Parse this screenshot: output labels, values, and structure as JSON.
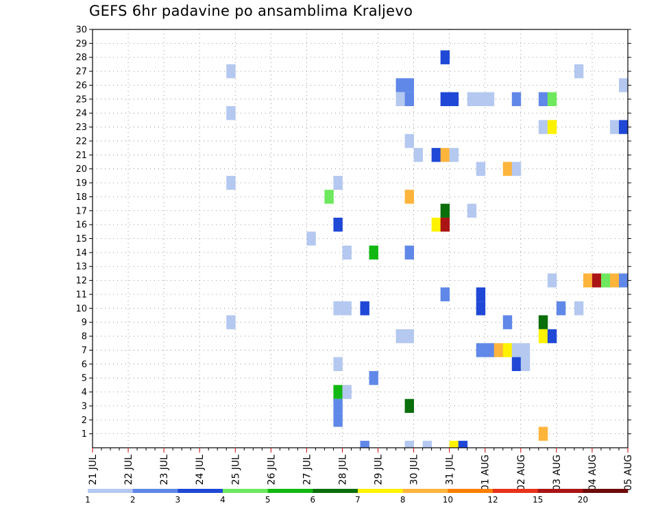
{
  "chart_data": {
    "type": "heatmap",
    "title": "GEFS 6hr padavine po ansamblima Kraljevo",
    "xlabel": "",
    "ylabel": "",
    "x_range": [
      0,
      59
    ],
    "x_unit": "6-hour steps from 21 JUL 00z",
    "ylim": [
      0,
      30
    ],
    "y_ticks": [
      1,
      2,
      3,
      4,
      5,
      6,
      7,
      8,
      9,
      10,
      11,
      12,
      13,
      14,
      15,
      16,
      17,
      18,
      19,
      20,
      21,
      22,
      23,
      24,
      25,
      26,
      27,
      28,
      29,
      30
    ],
    "x_tick_labels": [
      {
        "step": 0,
        "label": "21 JUL"
      },
      {
        "step": 4,
        "label": "22 JUL"
      },
      {
        "step": 8,
        "label": "23 JUL"
      },
      {
        "step": 12,
        "label": "24 JUL"
      },
      {
        "step": 16,
        "label": "25 JUL"
      },
      {
        "step": 20,
        "label": "26 JUL"
      },
      {
        "step": 24,
        "label": "27 JUL"
      },
      {
        "step": 28,
        "label": "28 JUL"
      },
      {
        "step": 32,
        "label": "29 JUL"
      },
      {
        "step": 36,
        "label": "30 JUL"
      },
      {
        "step": 40,
        "label": "31 JUL"
      },
      {
        "step": 44,
        "label": "01 AUG"
      },
      {
        "step": 48,
        "label": "02 AUG"
      },
      {
        "step": 52,
        "label": "03 AUG"
      },
      {
        "step": 56,
        "label": "04 AUG"
      },
      {
        "step": 60,
        "label": "05 AUG"
      }
    ],
    "grid": true,
    "legend": {
      "placement": "bottom",
      "bounds": [
        "1",
        "2",
        "3",
        "4",
        "5",
        "6",
        "7",
        "8",
        "10",
        "12",
        "15",
        "20",
        ""
      ],
      "colors": [
        "#b4c8f0",
        "#6088e8",
        "#1f48d6",
        "#6ee85e",
        "#12b812",
        "#0a6e0a",
        "#fff200",
        "#ffb43c",
        "#ff8000",
        "#e8321a",
        "#aa1414",
        "#6e0a0a"
      ]
    },
    "cells": [
      {
        "x": 15,
        "y": 27,
        "v": 1
      },
      {
        "x": 15,
        "y": 24,
        "v": 1
      },
      {
        "x": 15,
        "y": 19,
        "v": 1
      },
      {
        "x": 15,
        "y": 9,
        "v": 1
      },
      {
        "x": 24,
        "y": 15,
        "v": 1
      },
      {
        "x": 26,
        "y": 18,
        "v": 4
      },
      {
        "x": 27,
        "y": 16,
        "v": 3
      },
      {
        "x": 27,
        "y": 19,
        "v": 1
      },
      {
        "x": 27,
        "y": 10,
        "v": 1
      },
      {
        "x": 27,
        "y": 6,
        "v": 1
      },
      {
        "x": 27,
        "y": 4,
        "v": 5
      },
      {
        "x": 27,
        "y": 3,
        "v": 2
      },
      {
        "x": 27,
        "y": 2,
        "v": 2
      },
      {
        "x": 28,
        "y": 14,
        "v": 1
      },
      {
        "x": 28,
        "y": 10,
        "v": 1
      },
      {
        "x": 28,
        "y": 4,
        "v": 1
      },
      {
        "x": 30,
        "y": 10,
        "v": 3
      },
      {
        "x": 30,
        "y": 0,
        "v": 2
      },
      {
        "x": 31,
        "y": 14,
        "v": 5
      },
      {
        "x": 31,
        "y": 5,
        "v": 2
      },
      {
        "x": 34,
        "y": 26,
        "v": 2
      },
      {
        "x": 34,
        "y": 25,
        "v": 1
      },
      {
        "x": 34,
        "y": 8,
        "v": 1
      },
      {
        "x": 35,
        "y": 26,
        "v": 2
      },
      {
        "x": 35,
        "y": 25,
        "v": 2
      },
      {
        "x": 35,
        "y": 22,
        "v": 1
      },
      {
        "x": 35,
        "y": 18,
        "v": 8
      },
      {
        "x": 35,
        "y": 14,
        "v": 2
      },
      {
        "x": 35,
        "y": 8,
        "v": 1
      },
      {
        "x": 35,
        "y": 3,
        "v": 6
      },
      {
        "x": 35,
        "y": 0,
        "v": 1
      },
      {
        "x": 36,
        "y": 21,
        "v": 1
      },
      {
        "x": 37,
        "y": 0,
        "v": 1
      },
      {
        "x": 38,
        "y": 21,
        "v": 3
      },
      {
        "x": 38,
        "y": 16,
        "v": 7
      },
      {
        "x": 39,
        "y": 28,
        "v": 3
      },
      {
        "x": 39,
        "y": 25,
        "v": 3
      },
      {
        "x": 39,
        "y": 21,
        "v": 8
      },
      {
        "x": 39,
        "y": 17,
        "v": 6
      },
      {
        "x": 39,
        "y": 16,
        "v": 15
      },
      {
        "x": 39,
        "y": 11,
        "v": 2
      },
      {
        "x": 40,
        "y": 25,
        "v": 3
      },
      {
        "x": 40,
        "y": 21,
        "v": 1
      },
      {
        "x": 40,
        "y": 0,
        "v": 7
      },
      {
        "x": 41,
        "y": 0,
        "v": 3
      },
      {
        "x": 42,
        "y": 25,
        "v": 1
      },
      {
        "x": 42,
        "y": 17,
        "v": 1
      },
      {
        "x": 43,
        "y": 25,
        "v": 1
      },
      {
        "x": 43,
        "y": 20,
        "v": 1
      },
      {
        "x": 43,
        "y": 11,
        "v": 3
      },
      {
        "x": 43,
        "y": 10,
        "v": 3
      },
      {
        "x": 43,
        "y": 7,
        "v": 2
      },
      {
        "x": 44,
        "y": 25,
        "v": 1
      },
      {
        "x": 44,
        "y": 7,
        "v": 2
      },
      {
        "x": 45,
        "y": 7,
        "v": 8
      },
      {
        "x": 46,
        "y": 20,
        "v": 8
      },
      {
        "x": 46,
        "y": 9,
        "v": 2
      },
      {
        "x": 46,
        "y": 7,
        "v": 7
      },
      {
        "x": 47,
        "y": 25,
        "v": 2
      },
      {
        "x": 47,
        "y": 20,
        "v": 1
      },
      {
        "x": 47,
        "y": 7,
        "v": 1
      },
      {
        "x": 47,
        "y": 6,
        "v": 3
      },
      {
        "x": 48,
        "y": 7,
        "v": 1
      },
      {
        "x": 48,
        "y": 6,
        "v": 1
      },
      {
        "x": 50,
        "y": 25,
        "v": 2
      },
      {
        "x": 50,
        "y": 23,
        "v": 1
      },
      {
        "x": 50,
        "y": 9,
        "v": 6
      },
      {
        "x": 50,
        "y": 8,
        "v": 7
      },
      {
        "x": 50,
        "y": 1,
        "v": 8
      },
      {
        "x": 51,
        "y": 25,
        "v": 4
      },
      {
        "x": 51,
        "y": 23,
        "v": 7
      },
      {
        "x": 51,
        "y": 12,
        "v": 1
      },
      {
        "x": 51,
        "y": 8,
        "v": 3
      },
      {
        "x": 52,
        "y": 10,
        "v": 2
      },
      {
        "x": 54,
        "y": 27,
        "v": 1
      },
      {
        "x": 54,
        "y": 10,
        "v": 1
      },
      {
        "x": 55,
        "y": 12,
        "v": 8
      },
      {
        "x": 56,
        "y": 12,
        "v": 15
      },
      {
        "x": 57,
        "y": 12,
        "v": 4
      },
      {
        "x": 58,
        "y": 12,
        "v": 8
      },
      {
        "x": 58,
        "y": 23,
        "v": 1
      },
      {
        "x": 59,
        "y": 26,
        "v": 1
      },
      {
        "x": 59,
        "y": 23,
        "v": 3
      },
      {
        "x": 59,
        "y": 12,
        "v": 2
      }
    ]
  }
}
